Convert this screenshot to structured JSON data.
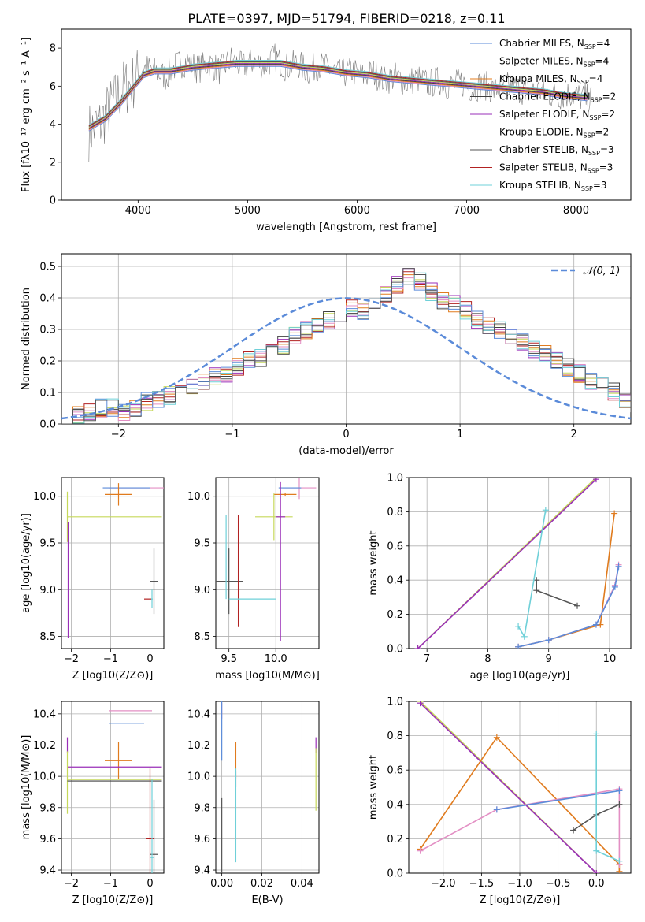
{
  "figure_title": "PLATE=0397, MJD=51794, FIBERID=0218, z=0.11",
  "colors": {
    "chab_miles": "#5b8bd9",
    "salp_miles": "#e38fc4",
    "krou_miles": "#e07b1e",
    "chab_elodie": "#404040",
    "salp_elodie": "#9a2fb8",
    "krou_elodie": "#c6d85a",
    "chab_stelib": "#555555",
    "salp_stelib": "#b22222",
    "krou_stelib": "#6fd0d8",
    "normal_curve": "#5b8bd9",
    "grid": "#b0b0b0",
    "spectrum": "#7a7a7a"
  },
  "legend_spectrum": [
    {
      "name": "Chabrier MILES, N",
      "sub": "SSP",
      "tail": "=4",
      "color_key": "chab_miles"
    },
    {
      "name": "Salpeter MILES, N",
      "sub": "SSP",
      "tail": "=4",
      "color_key": "salp_miles"
    },
    {
      "name": "Kroupa MILES, N",
      "sub": "SSP",
      "tail": "=4",
      "color_key": "krou_miles"
    },
    {
      "name": "Chabrier ELODIE, N",
      "sub": "SSP",
      "tail": "=2",
      "color_key": "chab_elodie"
    },
    {
      "name": "Salpeter ELODIE, N",
      "sub": "SSP",
      "tail": "=2",
      "color_key": "salp_elodie"
    },
    {
      "name": "Kroupa ELODIE, N",
      "sub": "SSP",
      "tail": "=2",
      "color_key": "krou_elodie"
    },
    {
      "name": "Chabrier STELIB, N",
      "sub": "SSP",
      "tail": "=3",
      "color_key": "chab_stelib"
    },
    {
      "name": "Salpeter STELIB, N",
      "sub": "SSP",
      "tail": "=3",
      "color_key": "salp_stelib"
    },
    {
      "name": "Kroupa STELIB, N",
      "sub": "SSP",
      "tail": "=3",
      "color_key": "krou_stelib"
    }
  ],
  "legend_normal": "𝒩(0, 1)",
  "chart_data": [
    {
      "id": "spectrum",
      "type": "line",
      "xlabel": "wavelength [Angstrom, rest frame]",
      "ylabel": "Flux [fλ10⁻¹⁷ erg cm⁻² s⁻¹ A⁻¹]",
      "xlim": [
        3300,
        8500
      ],
      "ylim": [
        0,
        9
      ],
      "xticks": [
        4000,
        5000,
        6000,
        7000,
        8000
      ],
      "yticks": [
        0,
        2,
        4,
        6,
        8
      ],
      "grid": false,
      "legend": "top-right",
      "model_continuum": {
        "x": [
          3550,
          3700,
          3850,
          3950,
          4050,
          4150,
          4300,
          4500,
          4700,
          4900,
          5100,
          5300,
          5500,
          5700,
          5900,
          6100,
          6300,
          6500,
          6700,
          6900,
          7100,
          7300,
          7500,
          7700,
          7900,
          8100
        ],
        "y": [
          3.8,
          4.3,
          5.2,
          5.9,
          6.6,
          6.8,
          6.8,
          7.0,
          7.1,
          7.2,
          7.2,
          7.2,
          7.0,
          6.9,
          6.7,
          6.6,
          6.4,
          6.3,
          6.2,
          6.1,
          6.0,
          5.9,
          5.8,
          5.7,
          5.5,
          5.4
        ]
      },
      "data_spectrum": {
        "x": [
          3550,
          3650,
          3750,
          3850,
          3950,
          4050,
          4150,
          4250,
          4350,
          4450,
          4550,
          4650,
          4750,
          4850,
          4950,
          5050,
          5150,
          5250,
          5350,
          5450,
          5550,
          5650,
          5750,
          5850,
          5950,
          6050,
          6150,
          6250,
          6350,
          6450,
          6550,
          6650,
          6750,
          6850,
          6950,
          7050,
          7150,
          7250,
          7350,
          7450,
          7550,
          7650,
          7750,
          7850,
          7950,
          8050,
          8150
        ],
        "y": [
          3.6,
          4.0,
          4.9,
          5.8,
          6.2,
          7.0,
          6.8,
          6.5,
          7.1,
          7.3,
          6.9,
          7.2,
          6.8,
          7.4,
          7.0,
          7.3,
          7.1,
          7.5,
          7.0,
          7.2,
          6.8,
          7.1,
          6.9,
          6.6,
          6.8,
          6.5,
          6.7,
          6.3,
          6.5,
          6.2,
          6.4,
          6.1,
          6.3,
          6.0,
          6.2,
          5.9,
          6.1,
          5.8,
          6.0,
          5.9,
          5.7,
          5.8,
          5.6,
          5.5,
          5.6,
          5.4,
          5.3
        ]
      }
    },
    {
      "id": "residuals",
      "type": "line",
      "xlabel": "(data-model)/error",
      "ylabel": "Normed distribution",
      "xlim": [
        -2.5,
        2.5
      ],
      "ylim": [
        0,
        0.54
      ],
      "xticks": [
        -2,
        -1,
        0,
        1,
        2
      ],
      "yticks": [
        0.0,
        0.1,
        0.2,
        0.3,
        0.4,
        0.5
      ],
      "grid": true,
      "legend": "top-right",
      "bin_width": 0.1,
      "bins_start": -2.5,
      "histogram": [
        0.02,
        0.03,
        0.04,
        0.05,
        0.05,
        0.04,
        0.05,
        0.07,
        0.08,
        0.09,
        0.1,
        0.12,
        0.13,
        0.15,
        0.16,
        0.18,
        0.2,
        0.21,
        0.23,
        0.25,
        0.28,
        0.3,
        0.31,
        0.33,
        0.34,
        0.37,
        0.36,
        0.38,
        0.41,
        0.44,
        0.47,
        0.45,
        0.42,
        0.39,
        0.38,
        0.36,
        0.33,
        0.31,
        0.3,
        0.28,
        0.26,
        0.24,
        0.22,
        0.2,
        0.18,
        0.16,
        0.14,
        0.12,
        0.1,
        0.07,
        0.04
      ]
    },
    {
      "id": "age_vs_Z",
      "type": "scatter",
      "xlabel": "Z [log10(Z/Z⊙)]",
      "ylabel": "age  [log10(age/yr)]",
      "xlim": [
        -2.25,
        0.35
      ],
      "ylim": [
        8.37,
        10.2
      ],
      "xticks": [
        -2,
        -1,
        0
      ],
      "yticks": [
        8.5,
        9.0,
        9.5,
        10.0
      ],
      "grid": true,
      "points": [
        {
          "x": 0.0,
          "y": 10.09,
          "xerr": 1.05,
          "yerr": 0,
          "color_key": "salp_miles"
        },
        {
          "x": -0.6,
          "y": 10.09,
          "xerr": 0.6,
          "yerr": 0,
          "color_key": "chab_miles"
        },
        {
          "x": -0.8,
          "y": 10.02,
          "xerr": 0.35,
          "yerr": 0.12,
          "color_key": "krou_miles"
        },
        {
          "x": -0.9,
          "y": 9.78,
          "xerr": 1.2,
          "yerr": 0,
          "color_key": "krou_elodie"
        },
        {
          "x": -2.1,
          "y": 9.78,
          "xerr": 0,
          "yerr": 0.27,
          "color_key": "krou_elodie"
        },
        {
          "x": -2.08,
          "y": 9.1,
          "xerr": 0,
          "yerr": 0.62,
          "color_key": "salp_elodie"
        },
        {
          "x": 0.1,
          "y": 9.09,
          "xerr": 0.1,
          "yerr": 0.35,
          "color_key": "chab_stelib"
        },
        {
          "x": -0.05,
          "y": 8.9,
          "xerr": 0.1,
          "yerr": 0,
          "color_key": "salp_stelib"
        },
        {
          "x": 0.05,
          "y": 8.9,
          "xerr": 0.02,
          "yerr": 0.1,
          "color_key": "krou_stelib"
        }
      ]
    },
    {
      "id": "age_vs_mass",
      "type": "scatter",
      "xlabel": "mass [log10(M/M⊙)]",
      "ylabel": "",
      "xlim": [
        9.36,
        10.46
      ],
      "ylim": [
        8.37,
        10.2
      ],
      "xticks": [
        9.5,
        10.0
      ],
      "yticks": [
        8.5,
        9.0,
        9.5,
        10.0
      ],
      "grid": true,
      "points": [
        {
          "x": 10.25,
          "y": 10.09,
          "xerr": 0.18,
          "yerr": 0.12,
          "color_key": "salp_miles"
        },
        {
          "x": 10.15,
          "y": 10.09,
          "xerr": 0.12,
          "yerr": 0,
          "color_key": "chab_miles"
        },
        {
          "x": 10.1,
          "y": 10.02,
          "xerr": 0.12,
          "yerr": 0.02,
          "color_key": "krou_miles"
        },
        {
          "x": 9.98,
          "y": 9.78,
          "xerr": 0.2,
          "yerr": 0.25,
          "color_key": "krou_elodie"
        },
        {
          "x": 10.05,
          "y": 9.78,
          "xerr": 0.05,
          "yerr": 0,
          "color_key": "salp_elodie"
        },
        {
          "x": 10.05,
          "y": 9.3,
          "xerr": 0,
          "yerr": 0.85,
          "color_key": "salp_elodie"
        },
        {
          "x": 9.5,
          "y": 9.09,
          "xerr": 0.15,
          "yerr": 0.35,
          "color_key": "chab_stelib"
        },
        {
          "x": 9.6,
          "y": 9.2,
          "xerr": 0,
          "yerr": 0.6,
          "color_key": "salp_stelib"
        },
        {
          "x": 9.47,
          "y": 9.35,
          "xerr": 0,
          "yerr": 0.45,
          "color_key": "krou_stelib"
        },
        {
          "x": 9.75,
          "y": 8.9,
          "xerr": 0.25,
          "yerr": 0,
          "color_key": "krou_stelib"
        }
      ]
    },
    {
      "id": "weight_vs_age",
      "type": "line",
      "xlabel": "age  [log10(age/yr)]",
      "ylabel": "mass weight",
      "xlim": [
        6.7,
        10.35
      ],
      "ylim": [
        0,
        1.0
      ],
      "xticks": [
        7,
        8,
        9,
        10
      ],
      "yticks": [
        0.0,
        0.2,
        0.4,
        0.6,
        0.8,
        1.0
      ],
      "grid": true,
      "series": [
        {
          "color_key": "krou_elodie",
          "x": [
            6.85,
            9.78
          ],
          "y": [
            0.0,
            1.0
          ]
        },
        {
          "color_key": "salp_elodie",
          "x": [
            6.85,
            9.78
          ],
          "y": [
            0.0,
            0.99
          ]
        },
        {
          "color_key": "chab_stelib",
          "x": [
            8.8,
            8.8,
            9.47
          ],
          "y": [
            0.4,
            0.34,
            0.25
          ]
        },
        {
          "color_key": "krou_stelib",
          "x": [
            8.5,
            8.6,
            8.95
          ],
          "y": [
            0.13,
            0.07,
            0.81
          ]
        },
        {
          "color_key": "krou_miles",
          "x": [
            8.5,
            9.0,
            9.85,
            10.08
          ],
          "y": [
            0.01,
            0.05,
            0.14,
            0.79
          ]
        },
        {
          "color_key": "salp_miles",
          "x": [
            8.5,
            9.0,
            9.78,
            10.09,
            10.15
          ],
          "y": [
            0.01,
            0.05,
            0.14,
            0.37,
            0.49
          ]
        },
        {
          "color_key": "chab_miles",
          "x": [
            8.5,
            9.0,
            9.78,
            10.09,
            10.15
          ],
          "y": [
            0.01,
            0.05,
            0.14,
            0.36,
            0.48
          ]
        }
      ]
    },
    {
      "id": "mass_vs_Z",
      "type": "scatter",
      "xlabel": "Z [log10(Z/Z⊙)]",
      "ylabel": "mass [log10(M/M⊙)]",
      "xlim": [
        -2.25,
        0.35
      ],
      "ylim": [
        9.38,
        10.48
      ],
      "xticks": [
        -2,
        -1,
        0
      ],
      "yticks": [
        9.4,
        9.6,
        9.8,
        10.0,
        10.2,
        10.4
      ],
      "grid": true,
      "points": [
        {
          "x": -0.5,
          "y": 10.42,
          "xerr": 0.55,
          "yerr": 0,
          "color_key": "salp_miles"
        },
        {
          "x": -0.6,
          "y": 10.34,
          "xerr": 0.45,
          "yerr": 0,
          "color_key": "chab_miles"
        },
        {
          "x": -0.8,
          "y": 10.1,
          "xerr": 0.35,
          "yerr": 0.12,
          "color_key": "krou_miles"
        },
        {
          "x": -0.9,
          "y": 10.06,
          "xerr": 1.2,
          "yerr": 0,
          "color_key": "salp_elodie"
        },
        {
          "x": -2.1,
          "y": 10.2,
          "xerr": 0,
          "yerr": 0.05,
          "color_key": "salp_elodie"
        },
        {
          "x": -0.9,
          "y": 9.98,
          "xerr": 1.2,
          "yerr": 0,
          "color_key": "krou_elodie"
        },
        {
          "x": -2.1,
          "y": 9.96,
          "xerr": 0,
          "yerr": 0.2,
          "color_key": "krou_elodie"
        },
        {
          "x": -0.9,
          "y": 9.97,
          "xerr": 1.2,
          "yerr": 0,
          "color_key": "chab_elodie"
        },
        {
          "x": 0.1,
          "y": 9.5,
          "xerr": 0.1,
          "yerr": 0.35,
          "color_key": "chab_stelib"
        },
        {
          "x": 0.0,
          "y": 9.6,
          "xerr": 0.1,
          "yerr": 0.45,
          "color_key": "salp_stelib"
        },
        {
          "x": 0.05,
          "y": 9.48,
          "xerr": 0.05,
          "yerr": 0.5,
          "color_key": "krou_stelib"
        }
      ]
    },
    {
      "id": "mass_vs_ebv",
      "type": "scatter",
      "xlabel": "E(B-V)",
      "ylabel": "",
      "xlim": [
        -0.003,
        0.0485
      ],
      "ylim": [
        9.38,
        10.48
      ],
      "xticks": [
        0.0,
        0.02,
        0.04
      ],
      "yticks": [
        9.4,
        9.6,
        9.8,
        10.0,
        10.2,
        10.4
      ],
      "grid": true,
      "points": [
        {
          "x": 0.0,
          "y": 10.42,
          "xerr": 0,
          "yerr": 0.05,
          "color_key": "salp_miles"
        },
        {
          "x": 0.0,
          "y": 10.3,
          "xerr": 0,
          "yerr": 0.2,
          "color_key": "chab_miles"
        },
        {
          "x": 0.0,
          "y": 9.62,
          "xerr": 0,
          "yerr": 0.24,
          "color_key": "chab_stelib"
        },
        {
          "x": 0.007,
          "y": 10.1,
          "xerr": 0,
          "yerr": 0.12,
          "color_key": "krou_miles"
        },
        {
          "x": 0.007,
          "y": 9.98,
          "xerr": 0,
          "yerr": 0.05,
          "color_key": "salp_stelib"
        },
        {
          "x": 0.007,
          "y": 9.75,
          "xerr": 0,
          "yerr": 0.3,
          "color_key": "krou_stelib"
        },
        {
          "x": 0.047,
          "y": 10.2,
          "xerr": 0,
          "yerr": 0.05,
          "color_key": "salp_elodie"
        },
        {
          "x": 0.047,
          "y": 9.98,
          "xerr": 0,
          "yerr": 0.2,
          "color_key": "krou_elodie"
        }
      ]
    },
    {
      "id": "weight_vs_Z",
      "type": "line",
      "xlabel": "Z [log10(Z/Z⊙)]",
      "ylabel": "mass weight",
      "xlim": [
        -2.45,
        0.45
      ],
      "ylim": [
        0,
        1.0
      ],
      "xticks": [
        -2.0,
        -1.5,
        -1.0,
        -0.5,
        0.0
      ],
      "yticks": [
        0.0,
        0.2,
        0.4,
        0.6,
        0.8,
        1.0
      ],
      "grid": true,
      "series": [
        {
          "color_key": "krou_elodie",
          "x": [
            -2.3,
            0.0
          ],
          "y": [
            1.0,
            0.0
          ]
        },
        {
          "color_key": "salp_elodie",
          "x": [
            -2.3,
            0.0
          ],
          "y": [
            0.99,
            0.0
          ]
        },
        {
          "color_key": "krou_miles",
          "x": [
            -2.3,
            -1.3,
            0.3,
            0.3
          ],
          "y": [
            0.14,
            0.79,
            0.05,
            0.01
          ]
        },
        {
          "color_key": "salp_miles",
          "x": [
            -2.3,
            -1.3,
            0.3,
            0.3
          ],
          "y": [
            0.13,
            0.37,
            0.49,
            0.05
          ]
        },
        {
          "color_key": "chab_miles",
          "x": [
            -1.3,
            0.3
          ],
          "y": [
            0.37,
            0.48
          ]
        },
        {
          "color_key": "chab_stelib",
          "x": [
            -0.3,
            0.0,
            0.3
          ],
          "y": [
            0.25,
            0.34,
            0.4
          ]
        },
        {
          "color_key": "krou_stelib",
          "x": [
            0.0,
            0.0,
            0.3
          ],
          "y": [
            0.81,
            0.13,
            0.07
          ]
        }
      ]
    }
  ]
}
